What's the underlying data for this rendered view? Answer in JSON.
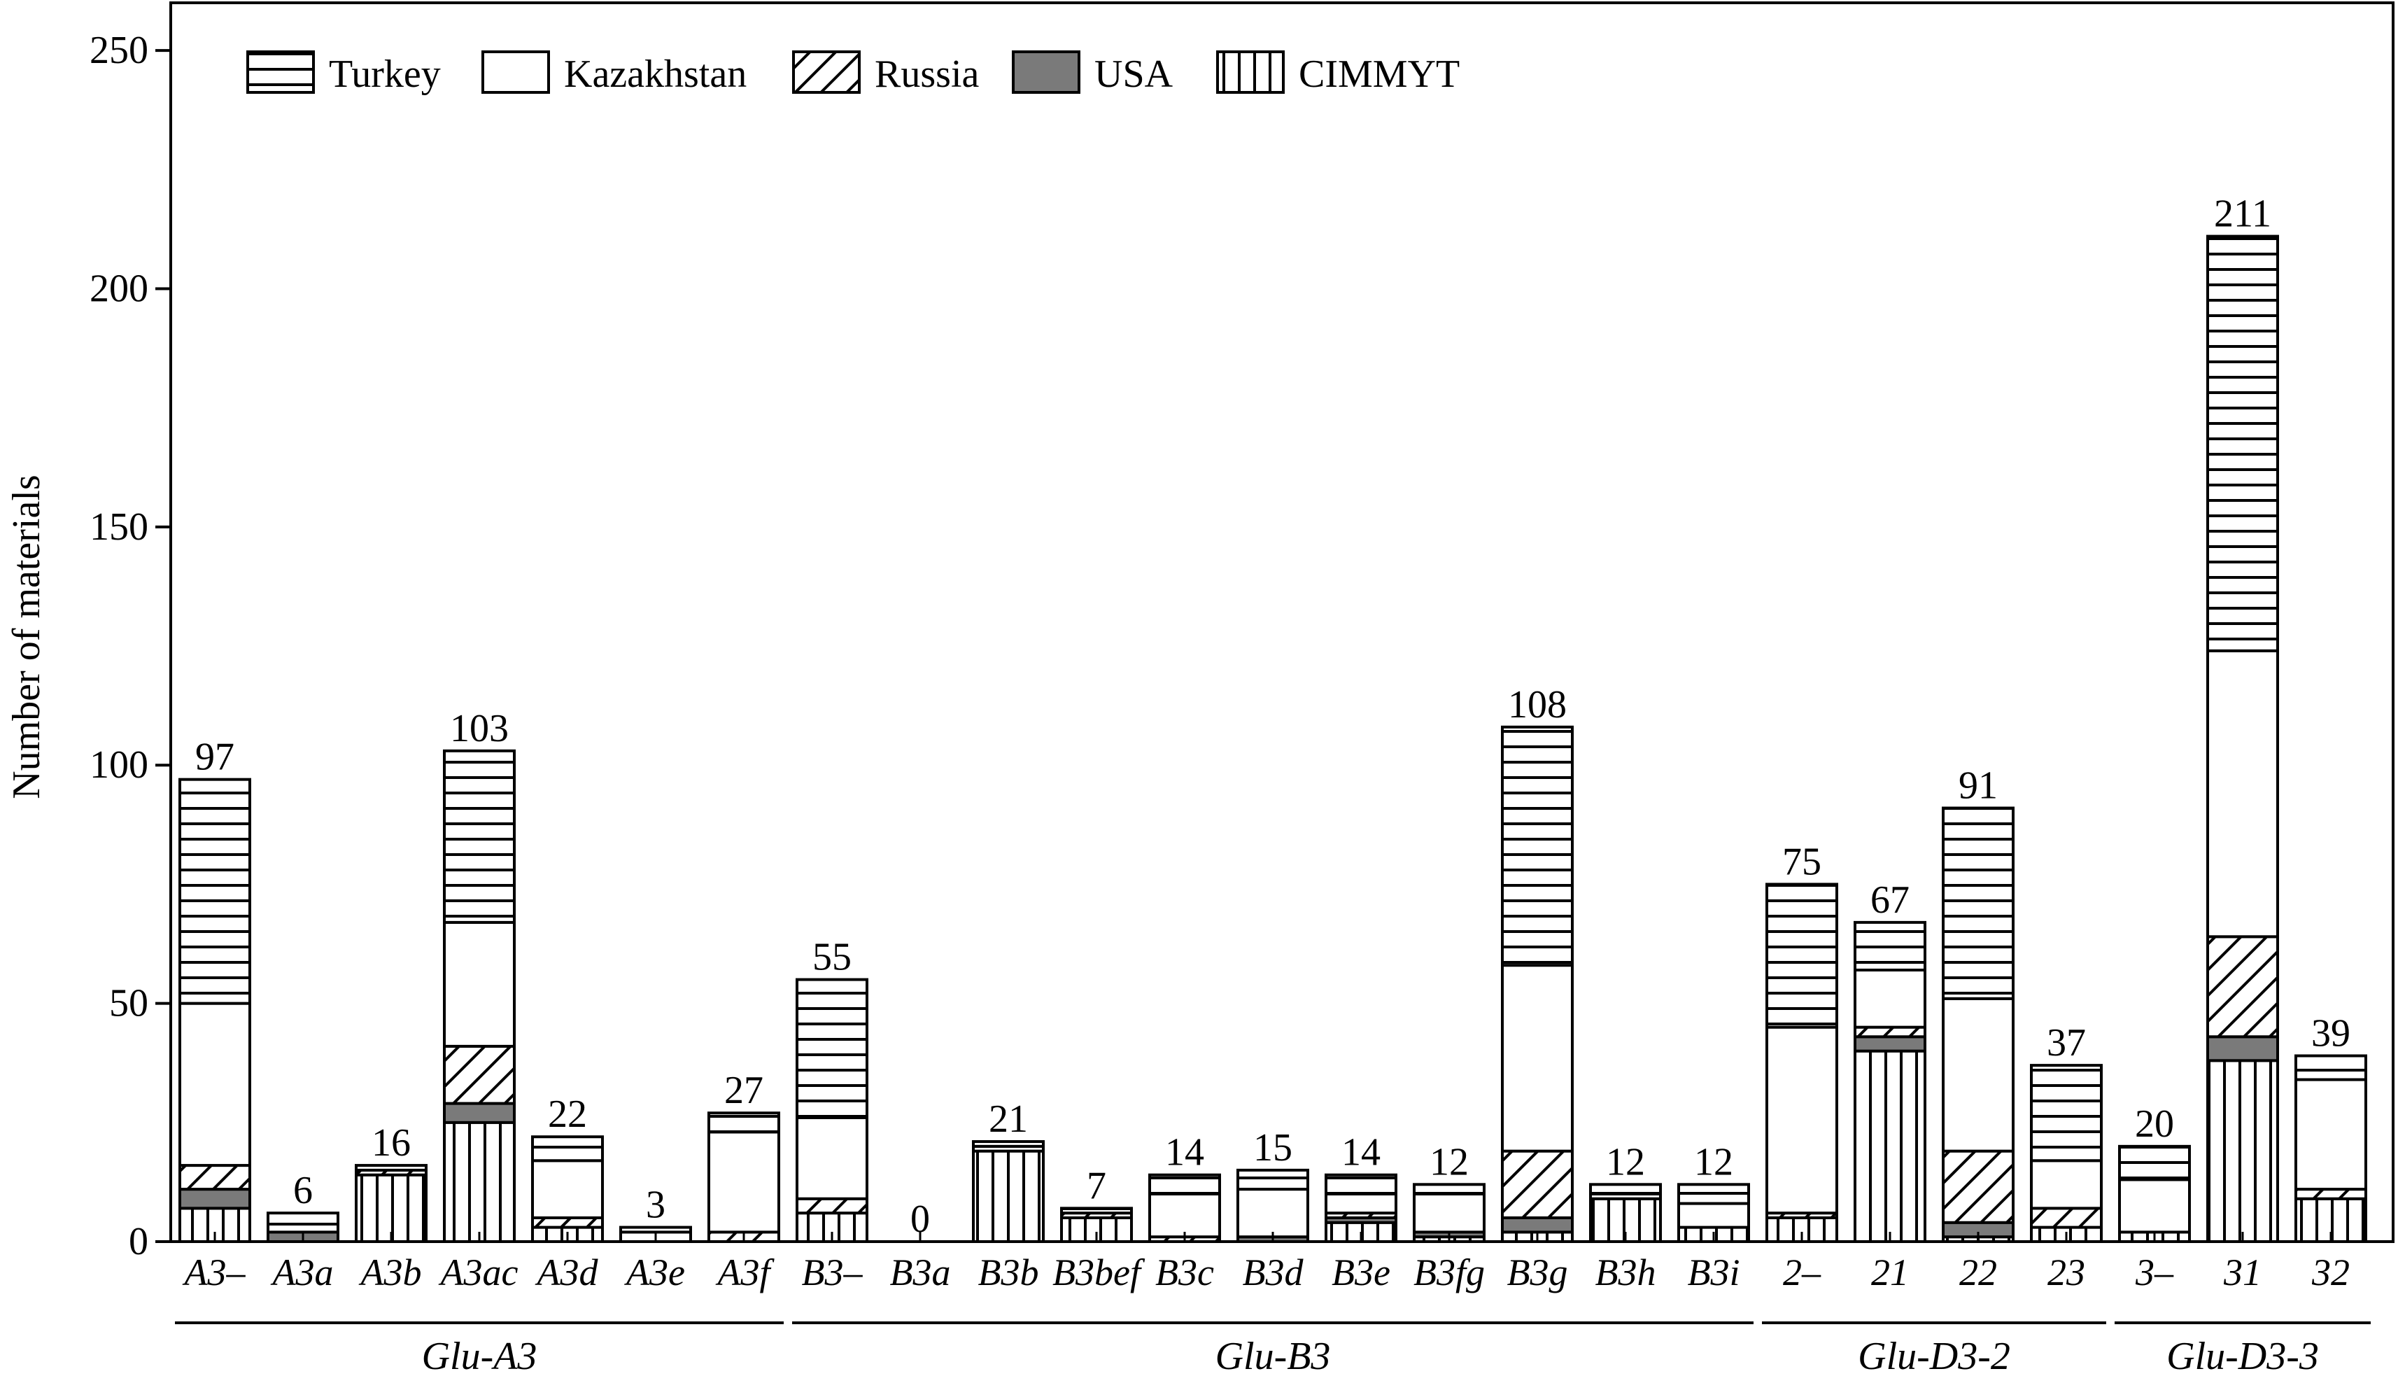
{
  "chart_data": {
    "type": "bar",
    "stacked": true,
    "ylabel": "Number of materials",
    "ylim": [
      0,
      260
    ],
    "yticks": [
      0,
      50,
      100,
      150,
      200,
      250
    ],
    "grid": false,
    "legend_position": "top-left",
    "series": [
      {
        "name": "CIMMYT",
        "pattern": "vertical-lines",
        "values": [
          7,
          0,
          14,
          25,
          3,
          0,
          0,
          6,
          0,
          19,
          5,
          0,
          0,
          4,
          1,
          2,
          9,
          3,
          5,
          40,
          1,
          3,
          2,
          38,
          9
        ]
      },
      {
        "name": "USA",
        "pattern": "solid-gray",
        "values": [
          4,
          2,
          0,
          4,
          0,
          0,
          0,
          0,
          0,
          0,
          0,
          0,
          1,
          1,
          1,
          3,
          0,
          0,
          0,
          3,
          3,
          0,
          0,
          5,
          0
        ]
      },
      {
        "name": "Russia",
        "pattern": "diagonal-lines",
        "values": [
          5,
          0,
          1,
          12,
          2,
          0,
          2,
          3,
          0,
          0,
          1,
          1,
          0,
          1,
          0,
          14,
          0,
          0,
          1,
          2,
          15,
          4,
          0,
          21,
          2
        ]
      },
      {
        "name": "Kazakhstan",
        "pattern": "blank",
        "values": [
          34,
          0,
          0,
          26,
          12,
          2,
          21,
          17,
          0,
          1,
          0,
          9,
          10,
          4,
          8,
          39,
          1,
          5,
          39,
          12,
          32,
          10,
          11,
          60,
          23
        ]
      },
      {
        "name": "Turkey",
        "pattern": "horizontal-lines",
        "values": [
          47,
          4,
          1,
          36,
          5,
          1,
          4,
          29,
          0,
          1,
          1,
          4,
          4,
          4,
          2,
          50,
          2,
          4,
          30,
          10,
          40,
          20,
          7,
          87,
          5
        ]
      }
    ],
    "legend_order": [
      "Turkey",
      "Kazakhstan",
      "Russia",
      "USA",
      "CIMMYT"
    ],
    "categories": [
      "A3–",
      "A3a",
      "A3b",
      "A3ac",
      "A3d",
      "A3e",
      "A3f",
      "B3–",
      "B3a",
      "B3b",
      "B3bef",
      "B3c",
      "B3d",
      "B3e",
      "B3fg",
      "B3g",
      "B3h",
      "B3i",
      "2–",
      "21",
      "22",
      "23",
      "3–",
      "31",
      "32"
    ],
    "totals": [
      97,
      6,
      16,
      103,
      22,
      3,
      27,
      55,
      0,
      21,
      7,
      14,
      15,
      14,
      12,
      108,
      12,
      12,
      75,
      67,
      91,
      37,
      20,
      211,
      39
    ],
    "groups": [
      {
        "label": "Glu-A3",
        "start": 0,
        "end": 6
      },
      {
        "label": "Glu-B3",
        "start": 7,
        "end": 17
      },
      {
        "label": "Glu-D3-2",
        "start": 18,
        "end": 21
      },
      {
        "label": "Glu-D3-3",
        "start": 22,
        "end": 24
      }
    ]
  }
}
